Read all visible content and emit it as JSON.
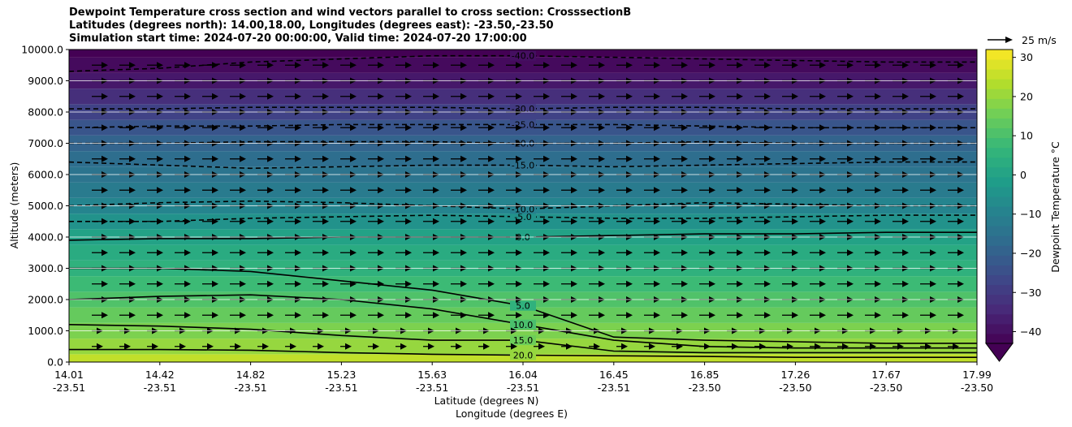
{
  "chart_data": {
    "type": "heatmap",
    "title_lines": [
      "Dewpoint Temperature cross section and wind vectors parallel to cross section: CrosssectionB",
      "Latitudes (degrees north): 14.00,18.00, Longitudes (degrees east): -23.50,-23.50",
      "Simulation start time: 2024-07-20 00:00:00, Valid time: 2024-07-20 17:00:00"
    ],
    "ylabel": "Altitude (meters)",
    "xlabel_lat": "Latitude (degrees N)",
    "xlabel_lon": "Longitude (degrees E)",
    "ylim": [
      0,
      10000
    ],
    "y_ticks": [
      "0.0",
      "1000.0",
      "2000.0",
      "3000.0",
      "4000.0",
      "5000.0",
      "6000.0",
      "7000.0",
      "8000.0",
      "9000.0",
      "10000.0"
    ],
    "x_ticks": [
      {
        "lat": "14.01",
        "lon": "-23.51"
      },
      {
        "lat": "14.42",
        "lon": "-23.51"
      },
      {
        "lat": "14.82",
        "lon": "-23.51"
      },
      {
        "lat": "15.23",
        "lon": "-23.51"
      },
      {
        "lat": "15.63",
        "lon": "-23.51"
      },
      {
        "lat": "16.04",
        "lon": "-23.51"
      },
      {
        "lat": "16.45",
        "lon": "-23.51"
      },
      {
        "lat": "16.85",
        "lon": "-23.50"
      },
      {
        "lat": "17.26",
        "lon": "-23.50"
      },
      {
        "lat": "17.67",
        "lon": "-23.50"
      },
      {
        "lat": "17.99",
        "lon": "-23.50"
      }
    ],
    "color_levels": [
      {
        "altitude": 0,
        "value": 25
      },
      {
        "altitude": 500,
        "value": 20
      },
      {
        "altitude": 1000,
        "value": 17
      },
      {
        "altitude": 1500,
        "value": 14
      },
      {
        "altitude": 2000,
        "value": 11
      },
      {
        "altitude": 2500,
        "value": 8
      },
      {
        "altitude": 3000,
        "value": 5
      },
      {
        "altitude": 3500,
        "value": 3
      },
      {
        "altitude": 4000,
        "value": 0
      },
      {
        "altitude": 4500,
        "value": -5
      },
      {
        "altitude": 5000,
        "value": -9
      },
      {
        "altitude": 5500,
        "value": -12
      },
      {
        "altitude": 6000,
        "value": -14
      },
      {
        "altitude": 6500,
        "value": -16
      },
      {
        "altitude": 7000,
        "value": -19
      },
      {
        "altitude": 7500,
        "value": -23
      },
      {
        "altitude": 8000,
        "value": -28
      },
      {
        "altitude": 8500,
        "value": -33
      },
      {
        "altitude": 9000,
        "value": -38
      },
      {
        "altitude": 9500,
        "value": -41
      },
      {
        "altitude": 10000,
        "value": -43
      }
    ],
    "contours": [
      {
        "level": 20.0,
        "label": "20.0",
        "style": "solid",
        "altitudes": [
          400,
          400,
          380,
          300,
          250,
          220,
          200,
          180,
          150,
          150,
          150
        ]
      },
      {
        "level": 15.0,
        "label": "15.0",
        "style": "solid",
        "altitudes": [
          1200,
          1150,
          1050,
          850,
          700,
          700,
          350,
          300,
          300,
          300,
          300
        ]
      },
      {
        "level": 10.0,
        "label": "10.0",
        "style": "solid",
        "altitudes": [
          2000,
          2100,
          2150,
          2000,
          1700,
          1200,
          700,
          500,
          450,
          450,
          450
        ]
      },
      {
        "level": 5.0,
        "label": "5.0",
        "style": "solid",
        "altitudes": [
          3000,
          3000,
          2900,
          2600,
          2300,
          1800,
          800,
          700,
          650,
          600,
          600
        ]
      },
      {
        "level": 0.0,
        "label": "0.0",
        "style": "solid",
        "altitudes": [
          3900,
          3950,
          3950,
          4000,
          4000,
          4000,
          4050,
          4100,
          4100,
          4150,
          4150
        ]
      },
      {
        "level": -5.0,
        "label": "-5.0",
        "style": "dashed",
        "altitudes": [
          4500,
          4500,
          4600,
          4650,
          4700,
          4650,
          4600,
          4600,
          4650,
          4700,
          4700
        ]
      },
      {
        "level": -10.0,
        "label": "-10.0",
        "style": "dashed",
        "altitudes": [
          5000,
          5100,
          5150,
          5100,
          5000,
          4900,
          5000,
          5100,
          5050,
          5000,
          5000
        ]
      },
      {
        "level": -15.0,
        "label": "-15.0",
        "style": "dashed",
        "altitudes": [
          6400,
          6300,
          6200,
          6250,
          6300,
          6300,
          6250,
          6300,
          6350,
          6400,
          6400
        ]
      },
      {
        "level": -20.0,
        "label": "-20.0",
        "style": "dashed",
        "altitudes": [
          7000,
          7000,
          7050,
          7050,
          7050,
          7000,
          7000,
          7050,
          7000,
          7000,
          7000
        ]
      },
      {
        "level": -25.0,
        "label": "-25.0",
        "style": "dashed",
        "altitudes": [
          7500,
          7550,
          7550,
          7600,
          7600,
          7600,
          7600,
          7550,
          7500,
          7500,
          7500
        ]
      },
      {
        "level": -30.0,
        "label": "-30.0",
        "style": "dashed",
        "altitudes": [
          8100,
          8100,
          8150,
          8150,
          8150,
          8100,
          8150,
          8150,
          8100,
          8100,
          8100
        ]
      },
      {
        "level": -40.0,
        "label": "-40.0",
        "style": "dashed",
        "altitudes": [
          9300,
          9400,
          9600,
          9700,
          9800,
          9800,
          9750,
          9700,
          9650,
          9600,
          9600
        ]
      }
    ],
    "wind_reference_label": "25 m/s",
    "colorbar": {
      "label": "Dewpoint Temperature $^\\circ$C",
      "label_display": "Dewpoint Temperature °C",
      "range": [
        -43,
        32
      ],
      "ticks": [
        "30",
        "20",
        "10",
        "0",
        "−10",
        "−20",
        "−30",
        "−40"
      ],
      "tick_values": [
        30,
        20,
        10,
        0,
        -10,
        -20,
        -30,
        -40
      ],
      "extend": "min"
    },
    "colors": {
      "stops": [
        "#440154",
        "#482878",
        "#3e4989",
        "#31688e",
        "#26828e",
        "#1f9e89",
        "#35b779",
        "#6ece58",
        "#b5de2b",
        "#fde725"
      ]
    }
  }
}
